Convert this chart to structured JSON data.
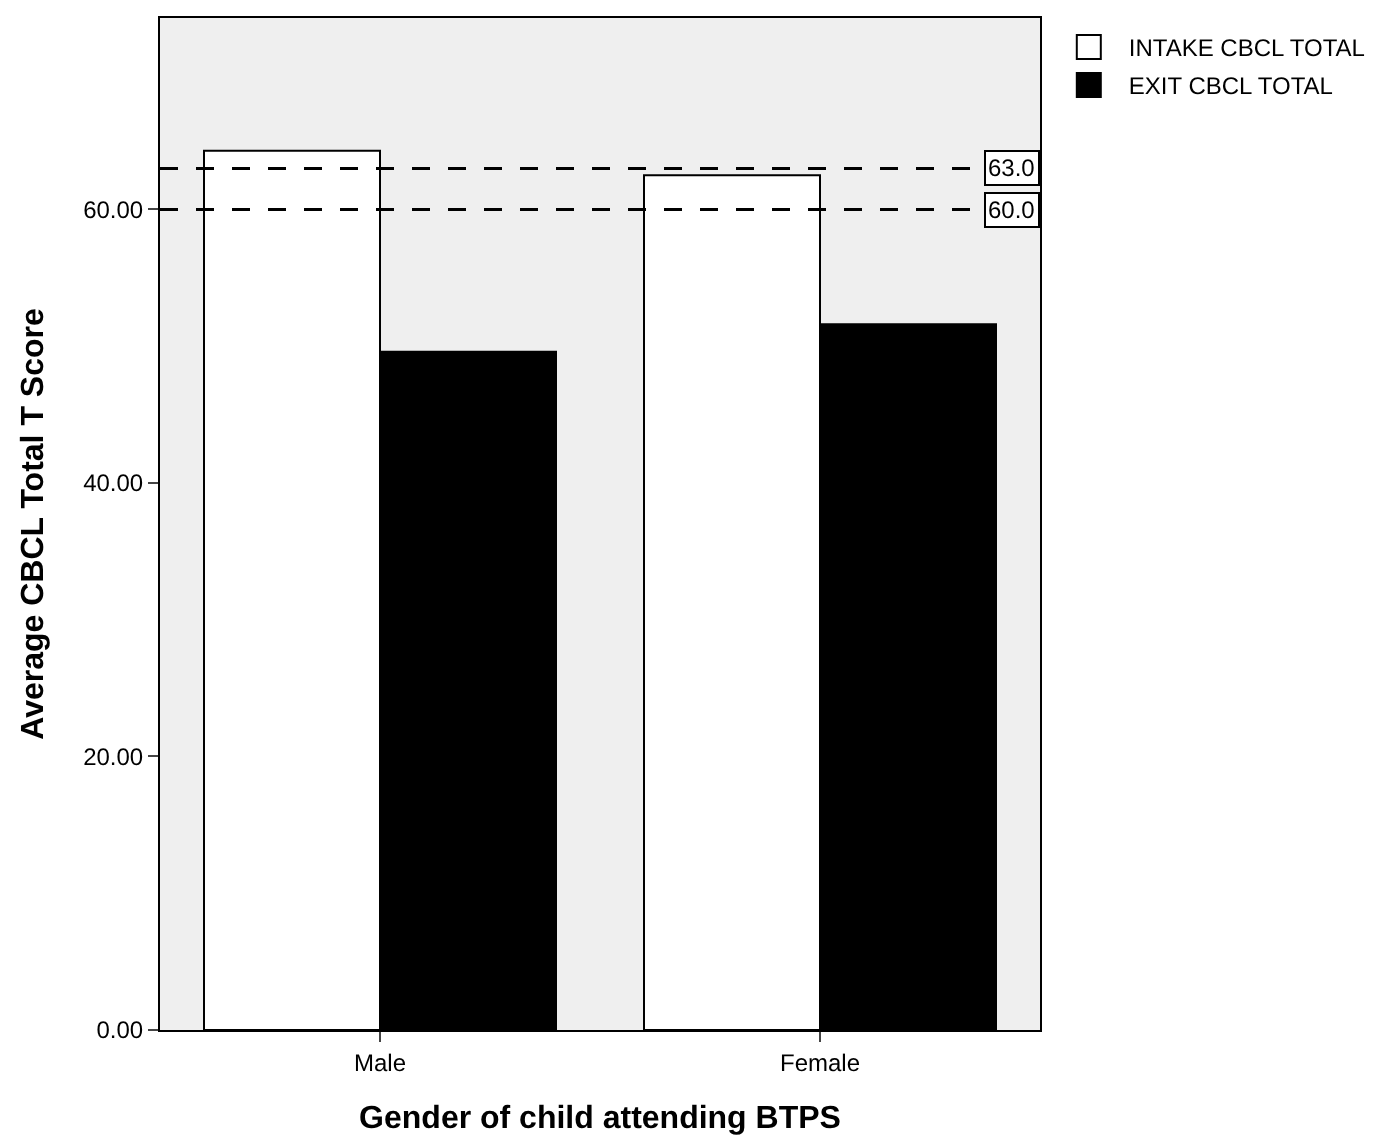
{
  "chart_data": {
    "type": "bar",
    "xlabel": "Gender of child attending BTPS",
    "ylabel": "Average CBCL Total T Score",
    "categories": [
      "Male",
      "Female"
    ],
    "series": [
      {
        "name": "INTAKE CBCL TOTAL",
        "color": "#ffffff",
        "values": [
          64.3,
          62.5
        ]
      },
      {
        "name": "EXIT CBCL TOTAL",
        "color": "#000000",
        "values": [
          49.6,
          51.6
        ]
      }
    ],
    "ylim": [
      0,
      74
    ],
    "yticks": [
      {
        "value": 0,
        "label": "0.00"
      },
      {
        "value": 20,
        "label": "20.00"
      },
      {
        "value": 40,
        "label": "40.00"
      },
      {
        "value": 60,
        "label": "60.00"
      }
    ],
    "ref_lines": [
      {
        "axis": "y",
        "value": 63,
        "label": "63.0",
        "color": "#000000",
        "line_style": "dashed"
      },
      {
        "axis": "y",
        "value": 60,
        "label": "60.0",
        "color": "#000000",
        "line_style": "dashed"
      }
    ],
    "grid": false,
    "legend": "top right"
  }
}
